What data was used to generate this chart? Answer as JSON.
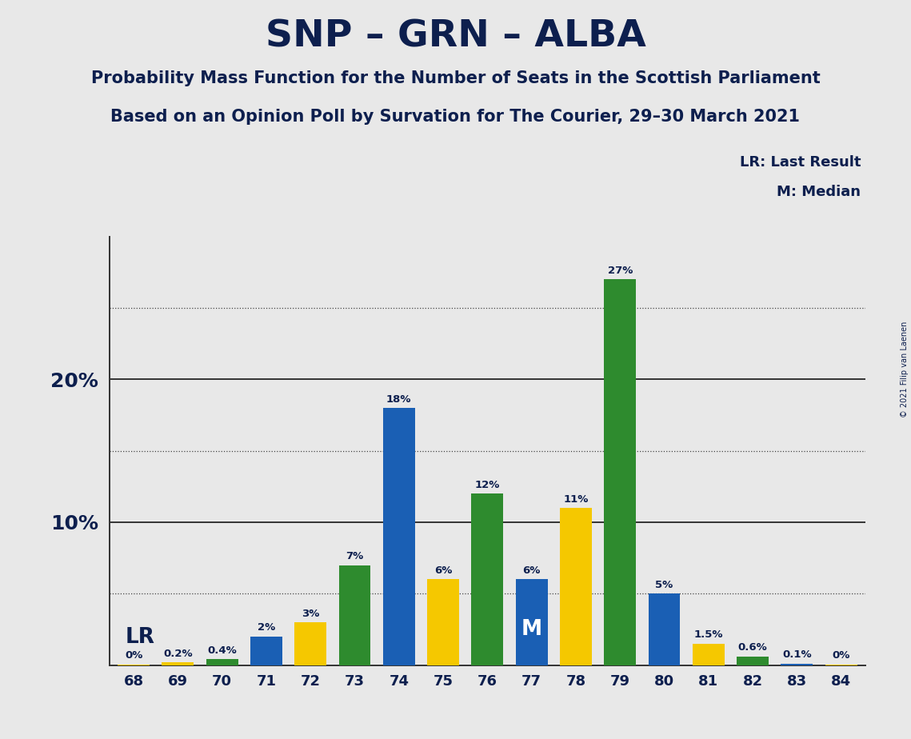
{
  "title": "SNP – GRN – ALBA",
  "subtitle1": "Probability Mass Function for the Number of Seats in the Scottish Parliament",
  "subtitle2": "Based on an Opinion Poll by Survation for The Courier, 29–30 March 2021",
  "copyright": "© 2021 Filip van Laenen",
  "seats": [
    68,
    69,
    70,
    71,
    72,
    73,
    74,
    75,
    76,
    77,
    78,
    79,
    80,
    81,
    82,
    83,
    84
  ],
  "values": [
    0.05,
    0.2,
    0.4,
    2.0,
    3.0,
    7.0,
    18.0,
    6.0,
    12.0,
    6.0,
    11.0,
    27.0,
    5.0,
    1.5,
    0.6,
    0.1,
    0.05
  ],
  "labels": [
    "0%",
    "0.2%",
    "0.4%",
    "2%",
    "3%",
    "7%",
    "18%",
    "6%",
    "12%",
    "6%",
    "11%",
    "27%",
    "5%",
    "1.5%",
    "0.6%",
    "0.1%",
    "0%"
  ],
  "bar_colors": [
    "#f5c800",
    "#f5c800",
    "#2e8b2e",
    "#1a5fb4",
    "#f5c800",
    "#2e8b2e",
    "#1a5fb4",
    "#f5c800",
    "#2e8b2e",
    "#1a5fb4",
    "#f5c800",
    "#2e8b2e",
    "#1a5fb4",
    "#f5c800",
    "#2e8b2e",
    "#1a5fb4",
    "#f5c800"
  ],
  "lr_seat_idx": 2,
  "median_seat_idx": 9,
  "ylim_max": 30,
  "background_color": "#e8e8e8",
  "text_color": "#0d1f4e",
  "legend_lr": "LR: Last Result",
  "legend_m": "M: Median",
  "dotted_lines": [
    5,
    15,
    25
  ],
  "solid_lines": [
    10,
    20
  ]
}
